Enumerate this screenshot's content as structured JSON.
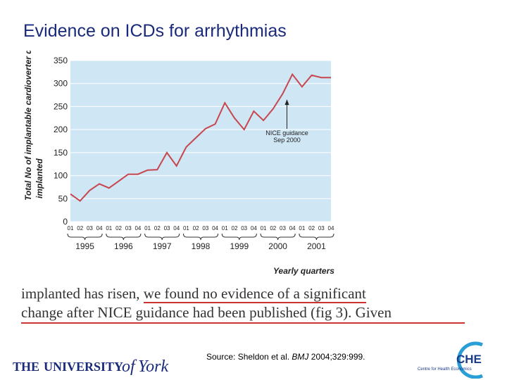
{
  "slide": {
    "title": "Evidence on ICDs for arrhythmias"
  },
  "excerpt": {
    "line1_a": "implanted has risen,",
    "line1_b": "we found no evidence of a significant",
    "line2": "change after NICE guidance had been published (fig 3). Given"
  },
  "source": {
    "prefix": "Source: Sheldon et al.",
    "journal": "BMJ",
    "citation": "2004;329:999."
  },
  "logos": {
    "york": {
      "text_the": "THE ",
      "text_univ": "UNIVERSITY",
      "text_of": "of",
      "text_york": "York"
    },
    "che": {
      "text": "CHE",
      "sub": "Centre for Health Economics"
    }
  },
  "colors": {
    "title": "#1a2a7a",
    "plot_bg": "#cfe6f5",
    "line": "#c8464e",
    "underline": "#cc3333"
  },
  "chart_data": {
    "type": "line",
    "ylabel": "Total No of implantable cardioverter defibrillators implanted",
    "xlabel": "Yearly quarters",
    "ylim": [
      0,
      350
    ],
    "yticks": [
      0,
      50,
      100,
      150,
      200,
      250,
      300,
      350
    ],
    "quarter_labels": [
      "01",
      "02",
      "03",
      "04"
    ],
    "years": [
      "1995",
      "1996",
      "1997",
      "1998",
      "1999",
      "2000",
      "2001"
    ],
    "values": [
      60,
      45,
      68,
      82,
      73,
      88,
      103,
      103,
      112,
      113,
      150,
      121,
      162,
      182,
      202,
      212,
      258,
      225,
      200,
      240,
      220,
      245,
      278,
      320,
      293,
      318,
      313,
      313
    ],
    "annotation": {
      "line1": "NICE guidance",
      "line2": "Sep 2000",
      "index": 22
    }
  }
}
